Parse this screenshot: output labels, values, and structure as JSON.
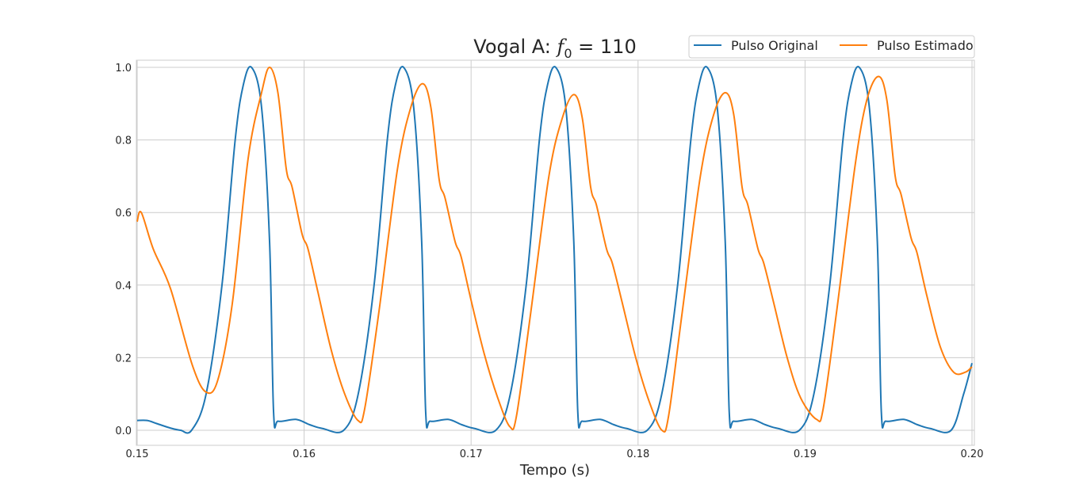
{
  "chart_data": {
    "type": "line",
    "title": "Vogal A: f0 = 110",
    "title_parts": {
      "prefix": "Vogal A: ",
      "var": "f",
      "sub": "0",
      "suffix": " = 110"
    },
    "xlabel": "Tempo (s)",
    "ylabel": "",
    "xlim": [
      0.15,
      0.2
    ],
    "ylim": [
      -0.041,
      1.02
    ],
    "grid": true,
    "legend_position": "top-right",
    "xticks": [
      "0.15",
      "0.16",
      "0.17",
      "0.18",
      "0.19",
      "0.20"
    ],
    "xtick_values": [
      0.15,
      0.16,
      0.17,
      0.18,
      0.19,
      0.2
    ],
    "yticks": [
      "0.0",
      "0.2",
      "0.4",
      "0.6",
      "0.8",
      "1.0"
    ],
    "ytick_values": [
      0,
      0.2,
      0.4,
      0.6,
      0.8,
      1.0
    ],
    "series": [
      {
        "name": "Pulso Original",
        "color": "#1f77b4",
        "points": [
          [
            0.15,
            0.027
          ],
          [
            0.1506,
            0.027
          ],
          [
            0.1512,
            0.018
          ],
          [
            0.152,
            0.006
          ],
          [
            0.1526,
            0.0
          ],
          [
            0.15326,
            0
          ],
          [
            0.15413,
            0.1
          ],
          [
            0.15508,
            0.4
          ],
          [
            0.15587,
            0.8
          ],
          [
            0.15635,
            0.95
          ],
          [
            0.15685,
            1
          ],
          [
            0.15745,
            0.89
          ],
          [
            0.15793,
            0.52
          ],
          [
            0.15817,
            0.05
          ],
          [
            0.15845,
            0.025
          ],
          [
            0.15951,
            0.03
          ],
          [
            0.16035,
            0.015
          ],
          [
            0.1611,
            0.005
          ],
          [
            0.16237,
            0
          ],
          [
            0.16324,
            0.1
          ],
          [
            0.16419,
            0.4
          ],
          [
            0.16498,
            0.8
          ],
          [
            0.16546,
            0.95
          ],
          [
            0.16596,
            1
          ],
          [
            0.16656,
            0.89
          ],
          [
            0.16704,
            0.52
          ],
          [
            0.16728,
            0.05
          ],
          [
            0.16756,
            0.025
          ],
          [
            0.16862,
            0.03
          ],
          [
            0.16946,
            0.015
          ],
          [
            0.17021,
            0.005
          ],
          [
            0.17148,
            0
          ],
          [
            0.17235,
            0.1
          ],
          [
            0.1733,
            0.4
          ],
          [
            0.17409,
            0.8
          ],
          [
            0.17457,
            0.95
          ],
          [
            0.17507,
            1
          ],
          [
            0.17567,
            0.89
          ],
          [
            0.17615,
            0.52
          ],
          [
            0.17639,
            0.05
          ],
          [
            0.17667,
            0.025
          ],
          [
            0.17773,
            0.03
          ],
          [
            0.17857,
            0.015
          ],
          [
            0.17932,
            0.005
          ],
          [
            0.18055,
            0
          ],
          [
            0.18142,
            0.1
          ],
          [
            0.18237,
            0.4
          ],
          [
            0.18316,
            0.8
          ],
          [
            0.18364,
            0.95
          ],
          [
            0.18414,
            1
          ],
          [
            0.18474,
            0.89
          ],
          [
            0.18522,
            0.52
          ],
          [
            0.18546,
            0.05
          ],
          [
            0.18574,
            0.025
          ],
          [
            0.1868,
            0.03
          ],
          [
            0.18764,
            0.015
          ],
          [
            0.18839,
            0.005
          ],
          [
            0.18966,
            0
          ],
          [
            0.19053,
            0.1
          ],
          [
            0.19148,
            0.4
          ],
          [
            0.19227,
            0.8
          ],
          [
            0.19275,
            0.95
          ],
          [
            0.19325,
            1
          ],
          [
            0.19385,
            0.89
          ],
          [
            0.19433,
            0.52
          ],
          [
            0.19457,
            0.05
          ],
          [
            0.19485,
            0.025
          ],
          [
            0.19591,
            0.03
          ],
          [
            0.19675,
            0.015
          ],
          [
            0.1975,
            0.005
          ],
          [
            0.19875,
            0
          ],
          [
            0.1995,
            0.1
          ],
          [
            0.2,
            0.185
          ]
        ]
      },
      {
        "name": "Pulso Estimado",
        "color": "#ff7f0e",
        "points": [
          [
            0.15,
            0.575
          ],
          [
            0.15025,
            0.6
          ],
          [
            0.15096,
            0.5
          ],
          [
            0.152,
            0.39
          ],
          [
            0.1533,
            0.18
          ],
          [
            0.15413,
            0.105
          ],
          [
            0.15484,
            0.14
          ],
          [
            0.1557,
            0.35
          ],
          [
            0.15665,
            0.75
          ],
          [
            0.15745,
            0.93
          ],
          [
            0.15793,
            1.0
          ],
          [
            0.15843,
            0.93
          ],
          [
            0.15893,
            0.72
          ],
          [
            0.15928,
            0.67
          ],
          [
            0.15988,
            0.54
          ],
          [
            0.16023,
            0.5
          ],
          [
            0.16083,
            0.38
          ],
          [
            0.16163,
            0.22
          ],
          [
            0.16243,
            0.1
          ],
          [
            0.16323,
            0.027
          ],
          [
            0.16363,
            0.06
          ],
          [
            0.16449,
            0.33
          ],
          [
            0.16559,
            0.72
          ],
          [
            0.16639,
            0.89
          ],
          [
            0.16709,
            0.955
          ],
          [
            0.16759,
            0.89
          ],
          [
            0.16809,
            0.69
          ],
          [
            0.16844,
            0.64
          ],
          [
            0.16904,
            0.52
          ],
          [
            0.16939,
            0.48
          ],
          [
            0.16999,
            0.36
          ],
          [
            0.17079,
            0.21
          ],
          [
            0.17159,
            0.09
          ],
          [
            0.17232,
            0.01
          ],
          [
            0.17272,
            0.04
          ],
          [
            0.17356,
            0.32
          ],
          [
            0.17466,
            0.7
          ],
          [
            0.17546,
            0.86
          ],
          [
            0.17616,
            0.925
          ],
          [
            0.17666,
            0.86
          ],
          [
            0.17716,
            0.67
          ],
          [
            0.17751,
            0.62
          ],
          [
            0.17811,
            0.5
          ],
          [
            0.17846,
            0.46
          ],
          [
            0.17906,
            0.35
          ],
          [
            0.17986,
            0.2
          ],
          [
            0.18066,
            0.08
          ],
          [
            0.18143,
            0.0
          ],
          [
            0.18183,
            0.04
          ],
          [
            0.18263,
            0.32
          ],
          [
            0.18373,
            0.7
          ],
          [
            0.18453,
            0.87
          ],
          [
            0.18523,
            0.93
          ],
          [
            0.18573,
            0.87
          ],
          [
            0.18623,
            0.67
          ],
          [
            0.18658,
            0.62
          ],
          [
            0.18718,
            0.5
          ],
          [
            0.18753,
            0.46
          ],
          [
            0.18813,
            0.35
          ],
          [
            0.18893,
            0.2
          ],
          [
            0.18973,
            0.09
          ],
          [
            0.19069,
            0.03
          ],
          [
            0.19109,
            0.06
          ],
          [
            0.1919,
            0.33
          ],
          [
            0.193,
            0.73
          ],
          [
            0.1937,
            0.91
          ],
          [
            0.1944,
            0.975
          ],
          [
            0.1949,
            0.91
          ],
          [
            0.1954,
            0.7
          ],
          [
            0.19575,
            0.65
          ],
          [
            0.19635,
            0.53
          ],
          [
            0.1967,
            0.49
          ],
          [
            0.1973,
            0.37
          ],
          [
            0.1981,
            0.23
          ],
          [
            0.1989,
            0.16
          ],
          [
            0.1996,
            0.16
          ],
          [
            0.2,
            0.175
          ]
        ]
      }
    ]
  }
}
